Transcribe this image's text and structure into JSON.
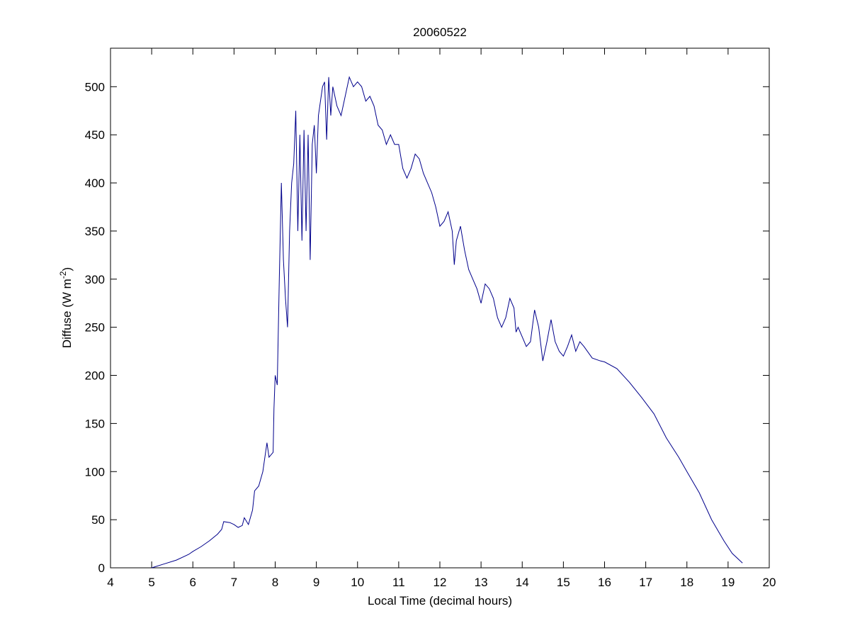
{
  "chart_data": {
    "type": "line",
    "title": "20060522",
    "xlabel": "Local Time (decimal hours)",
    "ylabel": {
      "text": "Diffuse (W m",
      "superscript": "-2",
      "suffix": ")"
    },
    "xlim": [
      4,
      20
    ],
    "ylim": [
      0,
      540
    ],
    "xticks": [
      4,
      5,
      6,
      7,
      8,
      9,
      10,
      11,
      12,
      13,
      14,
      15,
      16,
      17,
      18,
      19,
      20
    ],
    "yticks": [
      0,
      50,
      100,
      150,
      200,
      250,
      300,
      350,
      400,
      450,
      500
    ],
    "grid": false,
    "x": [
      5.0,
      5.3,
      5.6,
      5.9,
      6.0,
      6.2,
      6.4,
      6.6,
      6.7,
      6.75,
      6.9,
      7.0,
      7.1,
      7.2,
      7.25,
      7.35,
      7.45,
      7.5,
      7.6,
      7.7,
      7.8,
      7.85,
      7.95,
      7.97,
      8.0,
      8.05,
      8.1,
      8.15,
      8.2,
      8.25,
      8.3,
      8.35,
      8.4,
      8.45,
      8.5,
      8.55,
      8.6,
      8.65,
      8.7,
      8.75,
      8.8,
      8.85,
      8.9,
      8.95,
      9.0,
      9.05,
      9.15,
      9.2,
      9.25,
      9.3,
      9.35,
      9.4,
      9.5,
      9.6,
      9.7,
      9.8,
      9.9,
      10.0,
      10.1,
      10.2,
      10.3,
      10.4,
      10.5,
      10.6,
      10.7,
      10.8,
      10.9,
      11.0,
      11.1,
      11.2,
      11.3,
      11.4,
      11.5,
      11.6,
      11.7,
      11.8,
      11.9,
      12.0,
      12.1,
      12.2,
      12.3,
      12.35,
      12.4,
      12.5,
      12.6,
      12.7,
      12.8,
      12.9,
      13.0,
      13.1,
      13.2,
      13.3,
      13.4,
      13.5,
      13.6,
      13.7,
      13.8,
      13.85,
      13.9,
      14.0,
      14.1,
      14.2,
      14.3,
      14.4,
      14.5,
      14.6,
      14.7,
      14.8,
      14.9,
      15.0,
      15.1,
      15.2,
      15.3,
      15.4,
      15.5,
      15.7,
      15.9,
      16.0,
      16.3,
      16.6,
      16.9,
      17.2,
      17.5,
      17.8,
      18.0,
      18.3,
      18.6,
      18.9,
      19.1,
      19.35
    ],
    "series": [
      {
        "name": "Diffuse",
        "color": "#00008b",
        "values": [
          0,
          4,
          8,
          14,
          17,
          22,
          28,
          35,
          40,
          48,
          47,
          45,
          42,
          44,
          52,
          45,
          60,
          80,
          85,
          100,
          130,
          115,
          120,
          165,
          200,
          190,
          300,
          400,
          320,
          280,
          250,
          350,
          400,
          420,
          475,
          350,
          450,
          340,
          455,
          350,
          450,
          320,
          440,
          460,
          410,
          470,
          500,
          505,
          445,
          510,
          470,
          500,
          480,
          470,
          490,
          510,
          500,
          505,
          500,
          485,
          490,
          480,
          460,
          455,
          440,
          450,
          440,
          440,
          415,
          405,
          415,
          430,
          425,
          410,
          400,
          390,
          375,
          355,
          360,
          370,
          350,
          315,
          340,
          355,
          330,
          310,
          300,
          290,
          275,
          295,
          290,
          280,
          260,
          250,
          260,
          280,
          270,
          245,
          250,
          240,
          230,
          235,
          268,
          250,
          215,
          235,
          258,
          235,
          225,
          220,
          230,
          242,
          225,
          235,
          230,
          218,
          215,
          214,
          207,
          193,
          177,
          160,
          135,
          115,
          100,
          78,
          50,
          28,
          15,
          5
        ]
      }
    ]
  }
}
